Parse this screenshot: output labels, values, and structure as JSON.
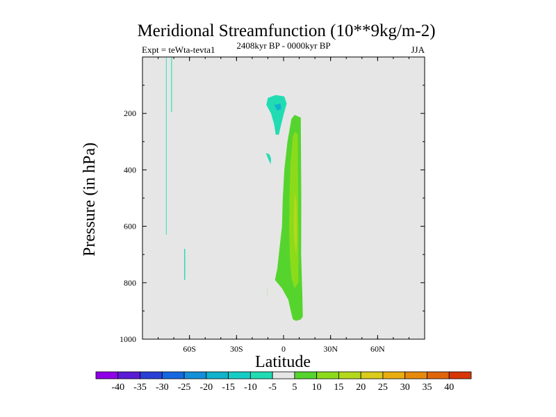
{
  "chart_data": {
    "type": "contour",
    "title": "Meridional Streamfunction (10**9kg/m-2)",
    "left_string": "Expt = teWta-tevta1",
    "center_string": "2408kyr BP - 0000kyr BP",
    "right_string": "JJA",
    "xlabel": "Latitude",
    "ylabel": "Pressure (in hPa)",
    "xlim": [
      -90,
      90
    ],
    "ylim": [
      1000,
      0
    ],
    "x_ticks": [
      {
        "value": -60,
        "label": "60S"
      },
      {
        "value": -30,
        "label": "30S"
      },
      {
        "value": 0,
        "label": "0"
      },
      {
        "value": 30,
        "label": "30N"
      },
      {
        "value": 60,
        "label": "60N"
      }
    ],
    "y_ticks": [
      {
        "value": 200,
        "label": "200"
      },
      {
        "value": 400,
        "label": "400"
      },
      {
        "value": 600,
        "label": "600"
      },
      {
        "value": 800,
        "label": "800"
      },
      {
        "value": 1000,
        "label": "1000"
      }
    ],
    "background_level": "-5 to 5",
    "background_color": "#e6e6e6",
    "levels": [
      -40,
      -35,
      -30,
      -25,
      -20,
      -15,
      -10,
      -5,
      5,
      10,
      15,
      20,
      25,
      30,
      35,
      40
    ],
    "colorbar_colors": [
      "#8f00e8",
      "#5a1cd4",
      "#2a3fd6",
      "#1768e0",
      "#148fd9",
      "#10b2cc",
      "#16cdc6",
      "#21dcb3",
      "#e6e6e6",
      "#56d42e",
      "#8cdb1a",
      "#b4d91c",
      "#d9cc1c",
      "#e8ad10",
      "#e68a0c",
      "#e0650a",
      "#d83606"
    ],
    "regions": [
      {
        "level": -10,
        "color": "#21dcb3",
        "points": [
          [
            -75,
            0
          ],
          [
            -74.6,
            0
          ],
          [
            -74.6,
            630
          ],
          [
            -75,
            630
          ]
        ]
      },
      {
        "level": -10,
        "color": "#21dcb3",
        "points": [
          [
            -71.7,
            0
          ],
          [
            -71.2,
            0
          ],
          [
            -71.2,
            195
          ],
          [
            -71.7,
            195
          ]
        ]
      },
      {
        "level": -10,
        "color": "#21dcb3",
        "points": [
          [
            -63.4,
            680
          ],
          [
            -62.8,
            680
          ],
          [
            -62.8,
            790
          ],
          [
            -63.4,
            790
          ]
        ]
      },
      {
        "level": -10,
        "color": "#21dcb3",
        "points": [
          [
            -10,
            145
          ],
          [
            -5,
            135
          ],
          [
            0.5,
            140
          ],
          [
            2,
            165
          ],
          [
            0,
            205
          ],
          [
            -2,
            250
          ],
          [
            -3,
            275
          ],
          [
            -5,
            275
          ],
          [
            -6,
            240
          ],
          [
            -8,
            200
          ],
          [
            -11,
            170
          ]
        ]
      },
      {
        "level": -10,
        "color": "#21dcb3",
        "points": [
          [
            -11.3,
            340
          ],
          [
            -9,
            345
          ],
          [
            -8,
            360
          ],
          [
            -8.2,
            380
          ],
          [
            -9.5,
            365
          ]
        ]
      },
      {
        "level": -15,
        "color": "#10b2cc",
        "points": [
          [
            -6,
            170
          ],
          [
            -2,
            165
          ],
          [
            -1.5,
            185
          ],
          [
            -4,
            190
          ]
        ]
      },
      {
        "level": 5,
        "color": "#56d42e",
        "points": [
          [
            5,
            220
          ],
          [
            7,
            205
          ],
          [
            11,
            215
          ],
          [
            11.3,
            500
          ],
          [
            11.2,
            700
          ],
          [
            12,
            850
          ],
          [
            12.3,
            920
          ],
          [
            11,
            930
          ],
          [
            8,
            935
          ],
          [
            6,
            930
          ],
          [
            5,
            910
          ],
          [
            3,
            860
          ],
          [
            -1,
            820
          ],
          [
            -5.5,
            790
          ],
          [
            -4,
            750
          ],
          [
            -3,
            700
          ],
          [
            -1,
            600
          ],
          [
            -0.5,
            500
          ],
          [
            0.5,
            400
          ],
          [
            2.5,
            300
          ]
        ]
      },
      {
        "level": 10,
        "color": "#8cdb1a",
        "points": [
          [
            6,
            280
          ],
          [
            7.5,
            265
          ],
          [
            9,
            275
          ],
          [
            9.3,
            500
          ],
          [
            9.5,
            700
          ],
          [
            9.4,
            800
          ],
          [
            7,
            820
          ],
          [
            5,
            780
          ],
          [
            4,
            700
          ],
          [
            3.6,
            600
          ],
          [
            3.8,
            500
          ],
          [
            4.4,
            380
          ]
        ]
      },
      {
        "level": 15,
        "color": "#b4d91c",
        "points": [
          [
            6.7,
            520
          ],
          [
            7.5,
            480
          ],
          [
            8.3,
            520
          ],
          [
            8.6,
            650
          ],
          [
            8,
            700
          ],
          [
            7,
            660
          ],
          [
            6.5,
            600
          ]
        ]
      },
      {
        "level": 5,
        "color": "#56d42e",
        "points": [
          [
            -10.5,
            840
          ],
          [
            -10,
            810
          ],
          [
            -10.5,
            850
          ]
        ]
      }
    ]
  }
}
